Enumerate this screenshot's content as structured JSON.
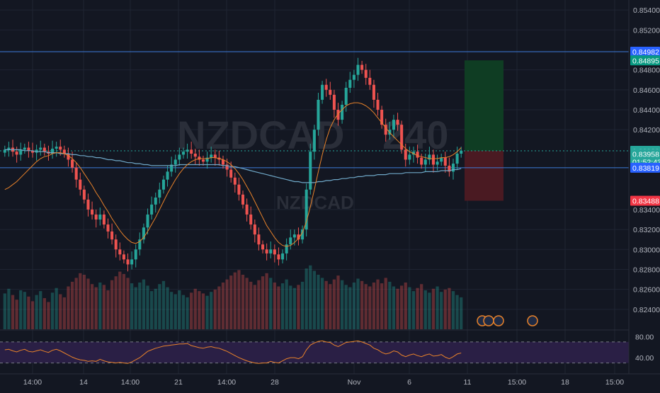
{
  "colors": {
    "background": "#131722",
    "grid": "#1f2433",
    "up": "#26a69a",
    "down": "#ef5350",
    "ema_fast": "#e8822a",
    "ema_slow": "#6fa8c8",
    "level_line": "#3d7bd9",
    "rsi_line": "#e8822a",
    "rsi_band": "#2a1f45",
    "axis_text": "#b2b5be",
    "watermark": "#2a2e39",
    "target_zone": "#0f3d23",
    "stop_zone": "#4a1a22"
  },
  "watermark": {
    "symbol": "NZDCAD",
    "interval": "240",
    "subtitle": "NZDCAD"
  },
  "chart_data": {
    "type": "candlestick",
    "symbol": "NZDCAD",
    "ylim": [
      0.822,
      0.855
    ],
    "y_ticks": [
      "0.85400",
      "0.85200",
      "0.84800",
      "0.84600",
      "0.84400",
      "0.84200",
      "0.83400",
      "0.83200",
      "0.83000",
      "0.82800",
      "0.82600",
      "0.82400"
    ],
    "x_ticks": [
      "14:00",
      "14",
      "14:00",
      "21",
      "14:00",
      "28",
      "Nov",
      "6",
      "11",
      "15:00",
      "18",
      "15:00"
    ],
    "price_labels": [
      {
        "text": "0.84982",
        "value": 0.84982,
        "color": "#2962ff",
        "kind": "level"
      },
      {
        "text": "0.84895",
        "value": 0.84895,
        "color": "#089981",
        "kind": "target"
      },
      {
        "text": "0.83988",
        "value": 0.83988,
        "color": "#26a69a",
        "kind": "last"
      },
      {
        "text": "0.83958",
        "value": 0.83958,
        "color": "#26a69a",
        "kind": "last"
      },
      {
        "text": "01:52:43",
        "value": 0.8388,
        "color": "#26a69a",
        "kind": "countdown"
      },
      {
        "text": "0.83819",
        "value": 0.83819,
        "color": "#2962ff",
        "kind": "level"
      },
      {
        "text": "0.83488",
        "value": 0.83488,
        "color": "#f23645",
        "kind": "stop"
      }
    ],
    "horizontal_levels": [
      0.84982,
      0.83819
    ],
    "position": {
      "entry": 0.83988,
      "target": 0.84895,
      "stop": 0.83488
    },
    "close": [
      0.84,
      0.8402,
      0.8398,
      0.8395,
      0.84,
      0.8402,
      0.8399,
      0.8397,
      0.84,
      0.8402,
      0.8398,
      0.8396,
      0.8401,
      0.8403,
      0.84,
      0.8396,
      0.839,
      0.8382,
      0.837,
      0.836,
      0.835,
      0.834,
      0.8335,
      0.833,
      0.8335,
      0.8325,
      0.8318,
      0.831,
      0.83,
      0.8295,
      0.829,
      0.8285,
      0.829,
      0.83,
      0.831,
      0.8322,
      0.8335,
      0.8345,
      0.8352,
      0.836,
      0.837,
      0.8378,
      0.8385,
      0.839,
      0.8395,
      0.8398,
      0.84,
      0.8396,
      0.8393,
      0.839,
      0.8388,
      0.8392,
      0.8395,
      0.8392,
      0.839,
      0.8385,
      0.838,
      0.8372,
      0.8365,
      0.8355,
      0.8345,
      0.8335,
      0.8325,
      0.8315,
      0.8305,
      0.83,
      0.8296,
      0.83,
      0.8295,
      0.829,
      0.8296,
      0.8305,
      0.8312,
      0.8315,
      0.831,
      0.832,
      0.836,
      0.8398,
      0.842,
      0.845,
      0.8465,
      0.846,
      0.8455,
      0.844,
      0.843,
      0.8445,
      0.8462,
      0.847,
      0.8475,
      0.8485,
      0.848,
      0.8472,
      0.8465,
      0.845,
      0.844,
      0.8425,
      0.8415,
      0.842,
      0.843,
      0.8425,
      0.84,
      0.839,
      0.8395,
      0.8398,
      0.8392,
      0.8385,
      0.839,
      0.8395,
      0.8385,
      0.8388,
      0.8392,
      0.8384,
      0.8378,
      0.8386,
      0.8396,
      0.8399
    ],
    "ema_fast": [
      0.836,
      0.8362,
      0.8365,
      0.8368,
      0.8372,
      0.8376,
      0.838,
      0.8384,
      0.8388,
      0.8391,
      0.8393,
      0.8394,
      0.8396,
      0.8397,
      0.8397,
      0.8396,
      0.8394,
      0.8391,
      0.8387,
      0.8382,
      0.8376,
      0.837,
      0.8364,
      0.8357,
      0.8351,
      0.8344,
      0.8338,
      0.8331,
      0.8325,
      0.8319,
      0.8314,
      0.831,
      0.8307,
      0.8306,
      0.8308,
      0.8312,
      0.8318,
      0.8325,
      0.8332,
      0.834,
      0.8348,
      0.8356,
      0.8363,
      0.837,
      0.8376,
      0.8381,
      0.8385,
      0.8388,
      0.839,
      0.8391,
      0.8391,
      0.8391,
      0.8392,
      0.8392,
      0.8391,
      0.839,
      0.8388,
      0.8385,
      0.8381,
      0.8376,
      0.837,
      0.8363,
      0.8356,
      0.8348,
      0.834,
      0.8332,
      0.8324,
      0.8318,
      0.8312,
      0.8307,
      0.8304,
      0.8303,
      0.8304,
      0.8307,
      0.8311,
      0.8317,
      0.8328,
      0.8343,
      0.836,
      0.8378,
      0.8395,
      0.841,
      0.8422,
      0.843,
      0.8436,
      0.844,
      0.8444,
      0.8446,
      0.8447,
      0.8447,
      0.8446,
      0.8444,
      0.8441,
      0.8437,
      0.8432,
      0.8427,
      0.8422,
      0.8417,
      0.8413,
      0.8409,
      0.8405,
      0.8401,
      0.8398,
      0.8396,
      0.8394,
      0.8393,
      0.8392,
      0.8391,
      0.8391,
      0.8391,
      0.8392,
      0.8392,
      0.8393,
      0.8395,
      0.8398,
      0.8402
    ],
    "ema_slow": [
      0.84,
      0.84,
      0.84,
      0.84,
      0.84,
      0.8399,
      0.8399,
      0.8399,
      0.8398,
      0.8398,
      0.8398,
      0.8397,
      0.8397,
      0.8397,
      0.8396,
      0.8396,
      0.8396,
      0.8395,
      0.8395,
      0.8394,
      0.8394,
      0.8393,
      0.8393,
      0.8392,
      0.8392,
      0.8391,
      0.839,
      0.839,
      0.8389,
      0.8389,
      0.8388,
      0.8387,
      0.8387,
      0.8386,
      0.8386,
      0.8385,
      0.8385,
      0.8384,
      0.8384,
      0.8384,
      0.8384,
      0.8384,
      0.8384,
      0.8384,
      0.8385,
      0.8385,
      0.8385,
      0.8385,
      0.8385,
      0.8385,
      0.8385,
      0.8385,
      0.8385,
      0.8385,
      0.8385,
      0.8384,
      0.8384,
      0.8383,
      0.8383,
      0.8382,
      0.8381,
      0.838,
      0.8379,
      0.8378,
      0.8377,
      0.8376,
      0.8375,
      0.8374,
      0.8373,
      0.8372,
      0.8371,
      0.837,
      0.8369,
      0.8368,
      0.8368,
      0.8367,
      0.8367,
      0.8367,
      0.8367,
      0.8368,
      0.8368,
      0.8369,
      0.8369,
      0.837,
      0.837,
      0.8371,
      0.8371,
      0.8372,
      0.8372,
      0.8373,
      0.8373,
      0.8374,
      0.8374,
      0.8374,
      0.8375,
      0.8375,
      0.8375,
      0.8376,
      0.8376,
      0.8376,
      0.8376,
      0.8377,
      0.8377,
      0.8377,
      0.8377,
      0.8377,
      0.8378,
      0.8378,
      0.8378,
      0.8378,
      0.8379,
      0.8379,
      0.8379,
      0.838,
      0.838,
      0.8381
    ],
    "rsi_ylim": [
      20,
      90
    ],
    "rsi_levels": [
      70,
      30
    ],
    "rsi_tick_labels": [
      "80.00",
      "40.00"
    ],
    "rsi": [
      55,
      56,
      53,
      51,
      54,
      56,
      52,
      51,
      53,
      55,
      52,
      50,
      54,
      56,
      53,
      49,
      45,
      41,
      38,
      36,
      35,
      33,
      34,
      33,
      37,
      34,
      32,
      31,
      30,
      31,
      30,
      29,
      32,
      36,
      40,
      46,
      52,
      55,
      58,
      60,
      62,
      63,
      64,
      65,
      66,
      66,
      67,
      63,
      61,
      59,
      58,
      60,
      61,
      59,
      58,
      55,
      52,
      48,
      44,
      40,
      37,
      34,
      32,
      30,
      29,
      30,
      30,
      33,
      31,
      30,
      34,
      38,
      40,
      40,
      38,
      42,
      55,
      64,
      68,
      71,
      72,
      70,
      69,
      64,
      61,
      65,
      69,
      70,
      71,
      72,
      70,
      67,
      64,
      58,
      55,
      50,
      47,
      49,
      53,
      51,
      45,
      42,
      45,
      47,
      44,
      42,
      45,
      47,
      43,
      44,
      46,
      41,
      38,
      42,
      47,
      49
    ],
    "volume": [
      46,
      52,
      44,
      38,
      50,
      48,
      42,
      36,
      44,
      49,
      40,
      35,
      47,
      53,
      45,
      41,
      55,
      61,
      66,
      72,
      70,
      65,
      58,
      54,
      60,
      57,
      50,
      63,
      68,
      74,
      71,
      66,
      59,
      54,
      60,
      64,
      56,
      49,
      52,
      58,
      62,
      54,
      48,
      45,
      50,
      44,
      41,
      47,
      52,
      49,
      46,
      43,
      48,
      51,
      55,
      60,
      64,
      69,
      73,
      76,
      70,
      66,
      61,
      57,
      63,
      68,
      72,
      66,
      60,
      55,
      59,
      64,
      56,
      53,
      57,
      61,
      78,
      82,
      75,
      70,
      66,
      62,
      58,
      64,
      69,
      63,
      57,
      54,
      60,
      65,
      62,
      58,
      55,
      60,
      64,
      59,
      66,
      61,
      55,
      52,
      56,
      60,
      54,
      49,
      53,
      58,
      50,
      47,
      52,
      55,
      48,
      51,
      53,
      49,
      44,
      41
    ],
    "event_markers": 4
  }
}
